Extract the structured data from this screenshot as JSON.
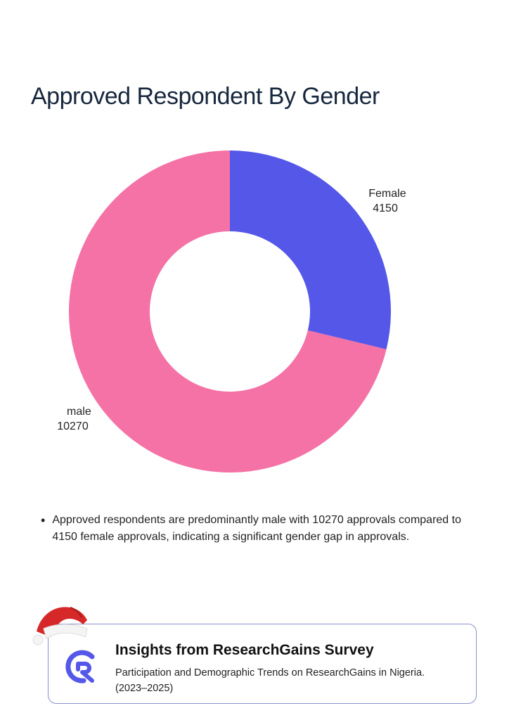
{
  "title": "Approved Respondent By Gender",
  "chart_data": {
    "type": "pie",
    "variant": "donut",
    "title": "Approved Respondent By Gender",
    "slices": [
      {
        "label": "Female",
        "value": 4150,
        "color": "#5457e8"
      },
      {
        "label": "male",
        "value": 10270,
        "color": "#f472a6"
      }
    ]
  },
  "note": {
    "bullet": "•",
    "text": "Approved respondents are predominantly male with 10270 approvals compared to 4150 female approvals, indicating a significant gender gap in approvals."
  },
  "card": {
    "title": "Insights from ResearchGains Survey",
    "subtitle": "Participation and Demographic Trends on ResearchGains in Nigeria. (2023–2025)",
    "border_color": "#8a8fce",
    "logo_color": "#5457e8",
    "logo_icon": "researchgains-logo"
  },
  "decoration": {
    "icon": "santa-hat-icon"
  }
}
